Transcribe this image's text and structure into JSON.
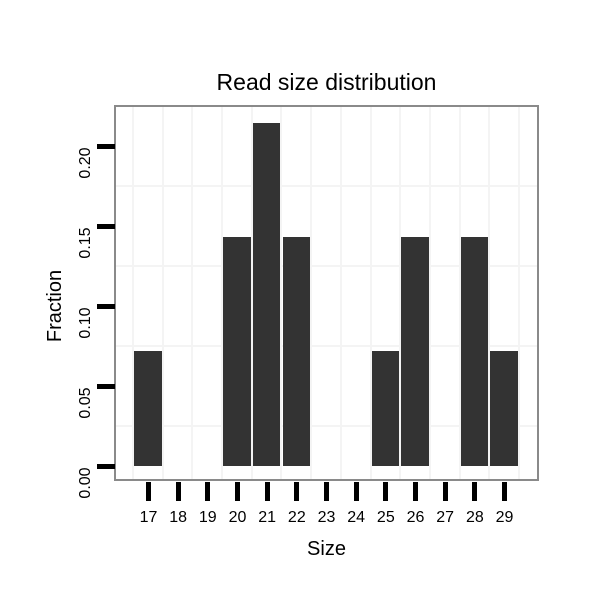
{
  "chart_data": {
    "type": "bar",
    "title": "Read size distribution",
    "xlabel": "Size",
    "ylabel": "Fraction",
    "categories": [
      17,
      18,
      19,
      20,
      21,
      22,
      23,
      24,
      25,
      26,
      27,
      28,
      29
    ],
    "values": [
      0.0714,
      0,
      0,
      0.1429,
      0.2143,
      0.1429,
      0,
      0,
      0.0714,
      0.1429,
      0,
      0.1429,
      0.0714
    ],
    "x_tick_labels": [
      "17",
      "18",
      "19",
      "20",
      "21",
      "22",
      "23",
      "24",
      "25",
      "26",
      "27",
      "28",
      "29"
    ],
    "y_tick_labels": [
      "0.00",
      "0.05",
      "0.10",
      "0.15",
      "0.20"
    ],
    "y_tick_values": [
      0,
      0.05,
      0.1,
      0.15,
      0.2
    ],
    "xlim": [
      15.905,
      30.095
    ],
    "ylim": [
      -0.0081,
      0.2241
    ],
    "bar_width_fraction": 0.93,
    "grid": "minor-only",
    "minor_x_values": [
      16.5,
      17.5,
      18.5,
      19.5,
      20.5,
      21.5,
      22.5,
      23.5,
      24.5,
      25.5,
      26.5,
      27.5,
      28.5,
      29.5
    ],
    "minor_y_values": [
      0.025,
      0.075,
      0.125,
      0.175
    ],
    "legend": "none",
    "colors": {
      "bar": "#333333",
      "panel_border": "#8a8a8a",
      "gridline": "#f4f4f4",
      "tick": "#000000",
      "text": "#000000",
      "background": "#ffffff"
    }
  }
}
